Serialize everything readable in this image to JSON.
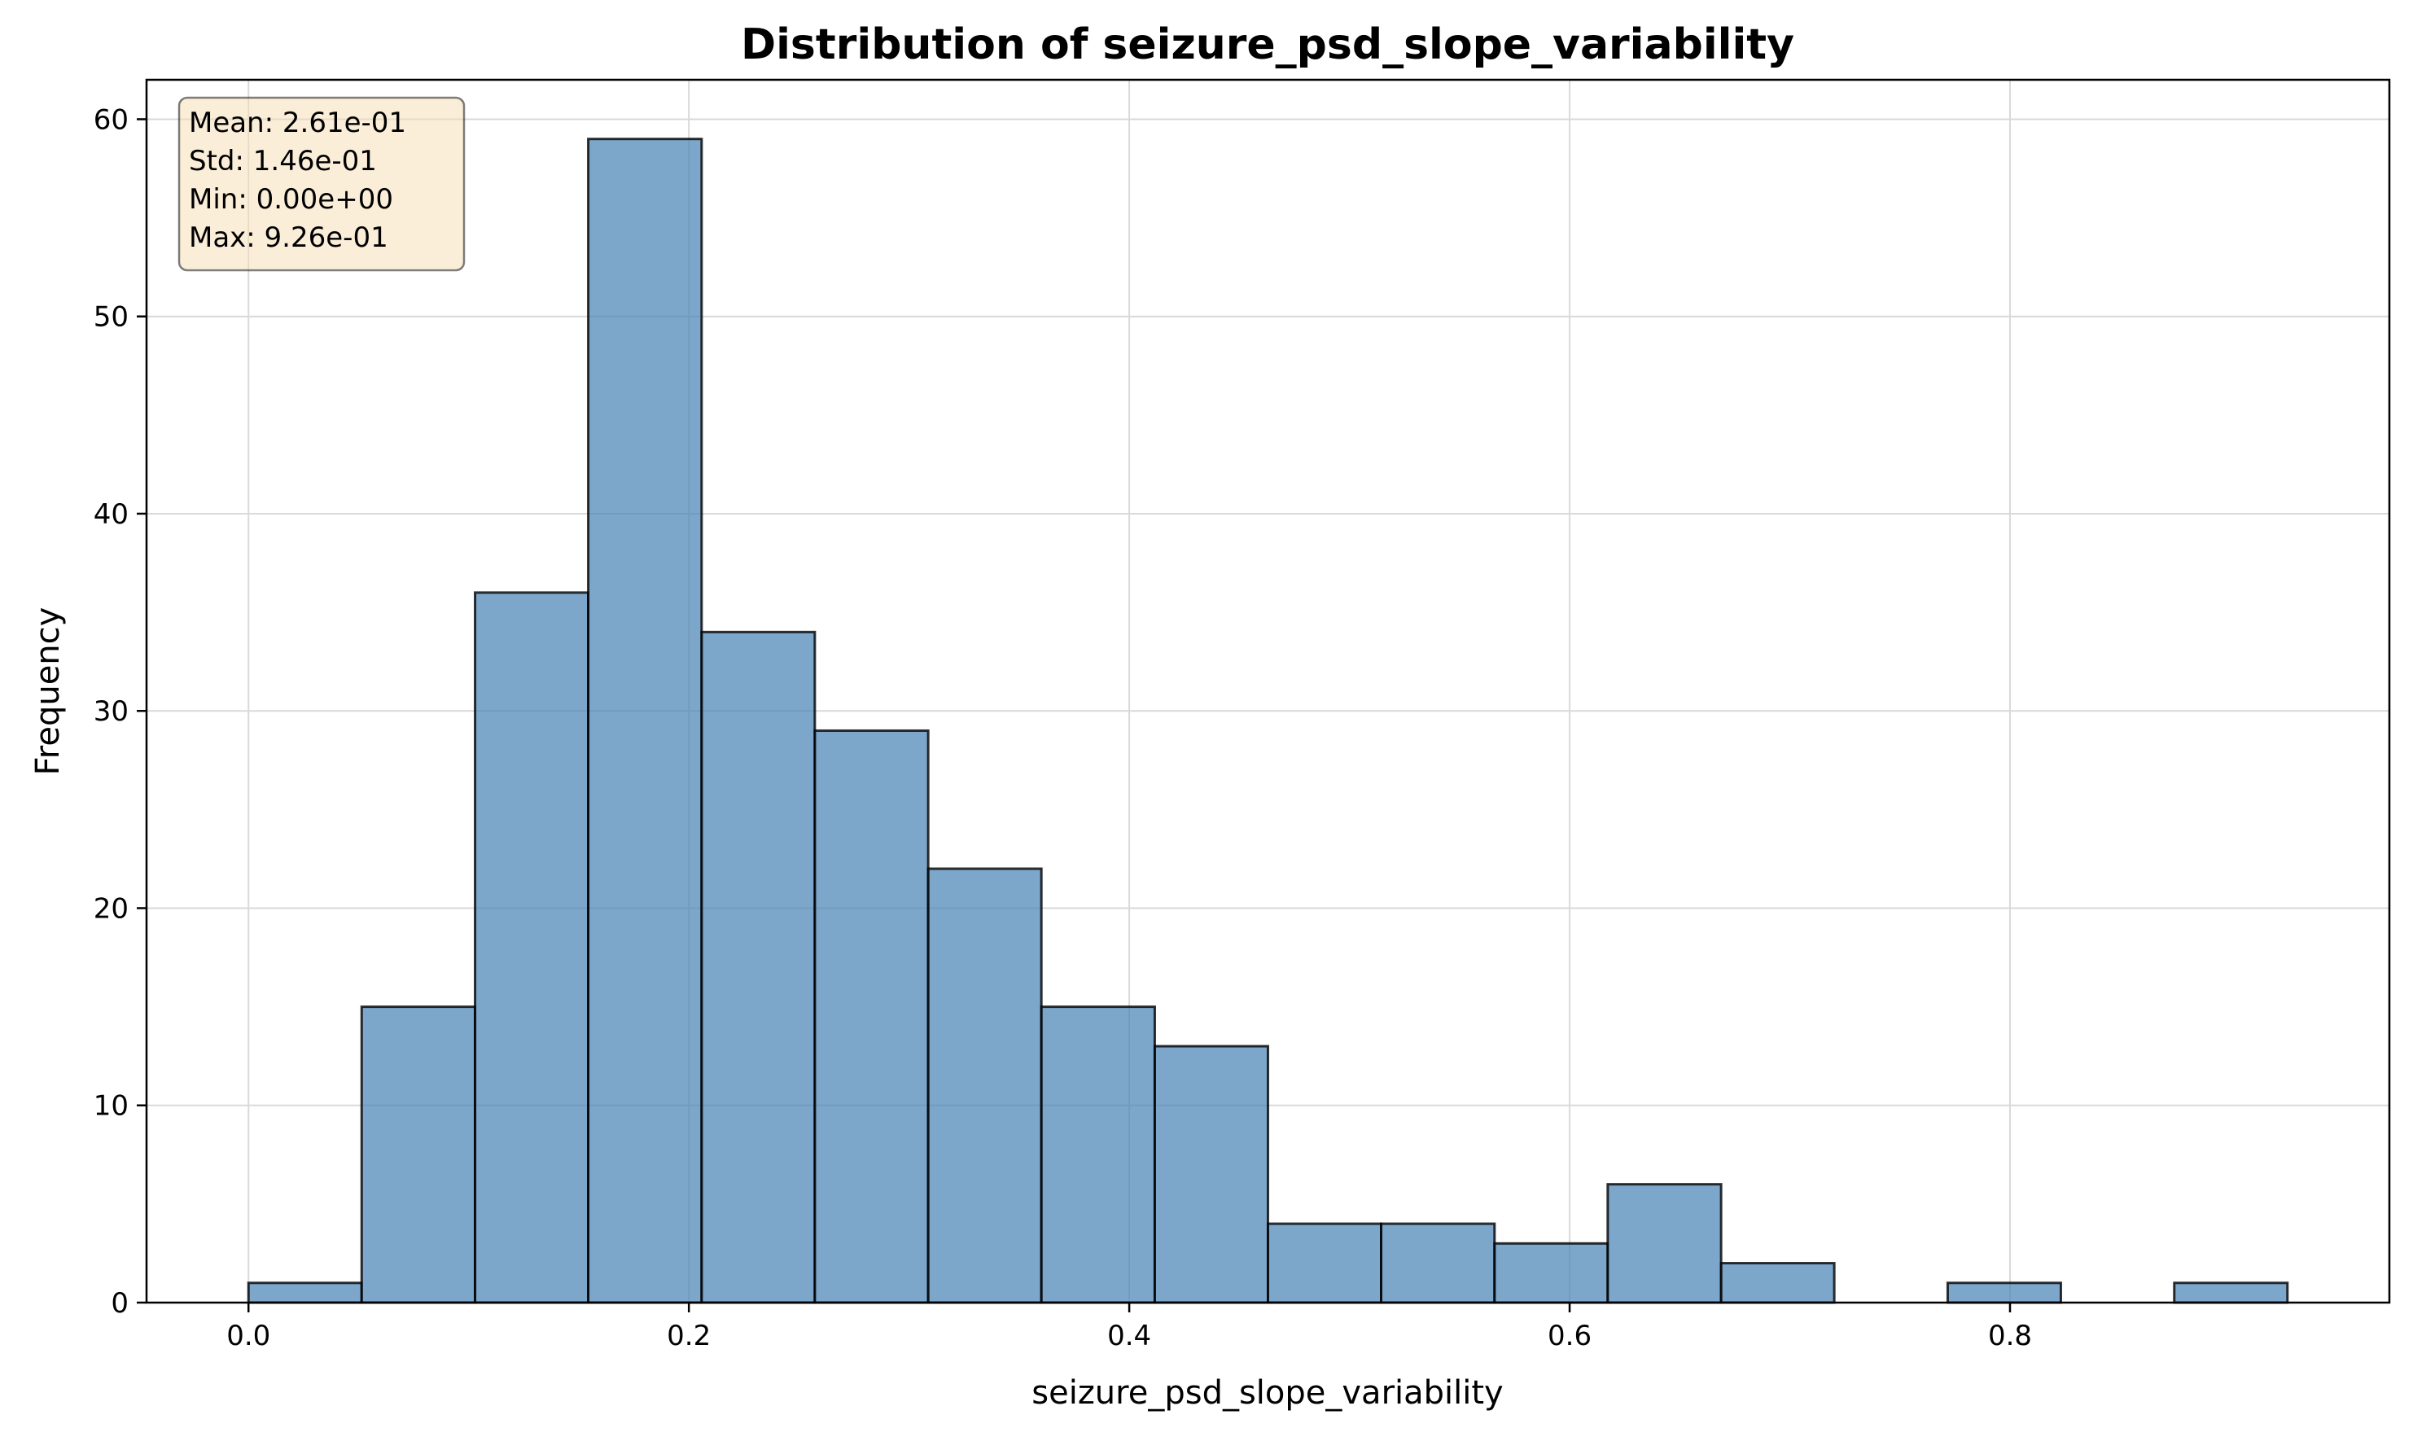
{
  "chart_data": {
    "type": "bar",
    "title": "Distribution of seizure_psd_slope_variability",
    "xlabel": "seizure_psd_slope_variability",
    "ylabel": "Frequency",
    "xlim": [
      -0.0463,
      0.9723
    ],
    "ylim": [
      0,
      62
    ],
    "xticks": [
      0.0,
      0.2,
      0.4,
      0.6,
      0.8
    ],
    "xtick_labels": [
      "0.0",
      "0.2",
      "0.4",
      "0.6",
      "0.8"
    ],
    "yticks": [
      0,
      10,
      20,
      30,
      40,
      50,
      60
    ],
    "ytick_labels": [
      "0",
      "10",
      "20",
      "30",
      "40",
      "50",
      "60"
    ],
    "grid": true,
    "bin_edges": [
      0.0,
      0.0514,
      0.1029,
      0.1543,
      0.2058,
      0.2572,
      0.3087,
      0.3601,
      0.4116,
      0.463,
      0.5144,
      0.5659,
      0.6173,
      0.6688,
      0.7202,
      0.7717,
      0.8231,
      0.8746,
      0.926
    ],
    "values": [
      1,
      15,
      36,
      59,
      34,
      29,
      22,
      15,
      13,
      4,
      4,
      3,
      6,
      2,
      0,
      1,
      0,
      1
    ],
    "stats_box": {
      "placement": "top-left",
      "lines": [
        "Mean: 2.61e-01",
        "Std: 1.46e-01",
        "Min: 0.00e+00",
        "Max: 9.26e-01"
      ]
    },
    "colors": {
      "bar_fill": "#4682b4",
      "bar_fill_opacity": 0.7,
      "bar_edge": "#000000",
      "stats_box_fill": "#f5deb3",
      "stats_box_edge": "#000000",
      "grid": "#d9d9d9"
    }
  }
}
